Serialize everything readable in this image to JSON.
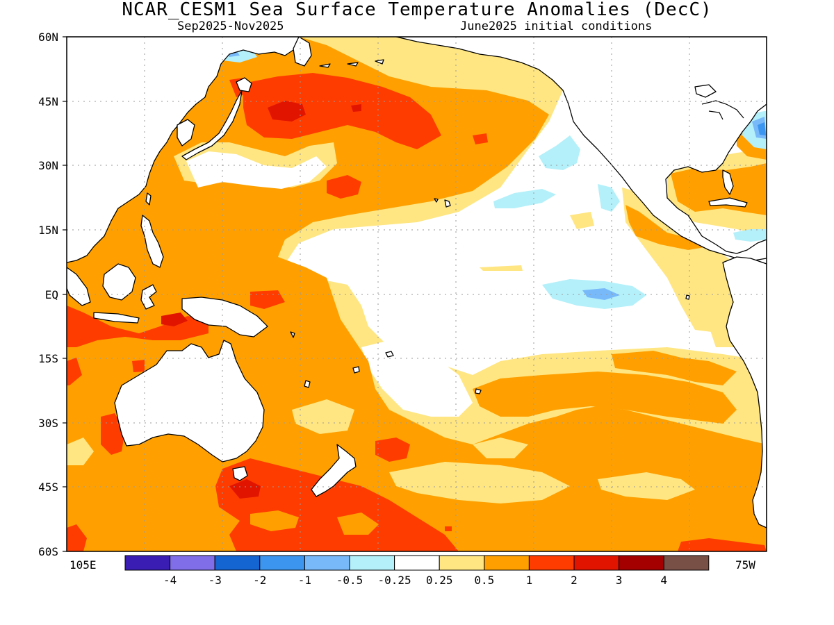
{
  "header": {
    "title": "NCAR_CESM1 Sea Surface Temperature Anomalies (DecC)",
    "period": "Sep2025-Nov2025",
    "init": "June2025 initial conditions"
  },
  "axes": {
    "lat_labels": [
      "60N",
      "45N",
      "30N",
      "15N",
      "EQ",
      "15S",
      "30S",
      "45S",
      "60S"
    ],
    "lon_west_label": "105E",
    "lon_east_label": "75W"
  },
  "legend": {
    "colors": [
      "#3a1eb4",
      "#7f6ee8",
      "#1464d2",
      "#3c96f0",
      "#78b9fa",
      "#b4f0fa",
      "#ffffff",
      "#ffe682",
      "#ffa000",
      "#ff3c00",
      "#e11400",
      "#a50000",
      "#785046"
    ],
    "labels": [
      "-4",
      "-3",
      "-2",
      "-1",
      "-0.5",
      "-0.25",
      "0.25",
      "0.5",
      "1",
      "2",
      "3",
      "4"
    ]
  },
  "chart_data": {
    "type": "map",
    "variable": "Sea Surface Temperature Anomalies (DecC)",
    "lat_range": [
      -60,
      60
    ],
    "lon_range": [
      105,
      285
    ],
    "lat_ticks": [
      60,
      45,
      30,
      15,
      0,
      -15,
      -30,
      -45,
      -60
    ],
    "lon_ticks": [
      105,
      285
    ],
    "grid": true,
    "levels": [
      -4,
      -3,
      -2,
      -1,
      -0.5,
      -0.25,
      0.25,
      0.5,
      1,
      2,
      3,
      4
    ],
    "features": [
      {
        "region": "north-pacific-kuroshio-extension",
        "anomaly_range": [
          1,
          3
        ]
      },
      {
        "region": "tropical-eastern-pacific",
        "anomaly_range": [
          -0.25,
          0.25
        ]
      },
      {
        "region": "eastern-equatorial-pacific",
        "anomaly_range": [
          -1,
          -0.25
        ]
      },
      {
        "region": "maritime-continent",
        "anomaly_range": [
          1,
          2
        ]
      },
      {
        "region": "tasman-sea-south-of-australia",
        "anomaly_range": [
          1,
          3
        ]
      },
      {
        "region": "gulf-stream-off-us-east-coast",
        "anomaly_range": [
          -2,
          -0.5
        ]
      },
      {
        "region": "gulf-of-mexico-caribbean",
        "anomaly_range": [
          0.5,
          1
        ]
      },
      {
        "region": "southeast-pacific",
        "anomaly_range": [
          0.5,
          1
        ]
      }
    ]
  }
}
